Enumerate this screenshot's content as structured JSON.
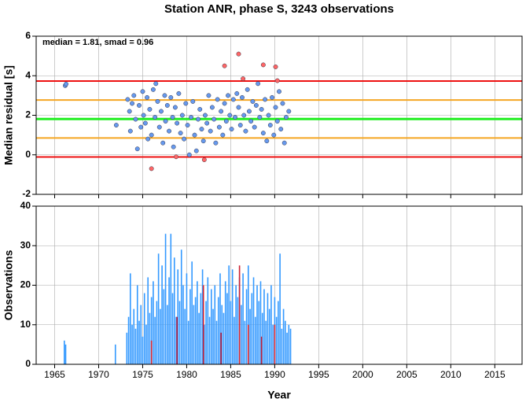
{
  "chart_data": [
    {
      "type": "scatter",
      "title": "Station ANR, phase S, 3243 observations",
      "ylabel": "Median residual [s]",
      "annotation": "median = 1.81, smad = 0.96",
      "xlim": [
        1962.9,
        2018.1
      ],
      "xticks": [
        1965,
        1970,
        1975,
        1980,
        1985,
        1990,
        1995,
        2000,
        2005,
        2010,
        2015
      ],
      "ylim": [
        -2,
        6
      ],
      "yticks": [
        -2,
        0,
        2,
        4,
        6
      ],
      "grid": true,
      "hlines": [
        {
          "value": 3.73,
          "color": "#ee1111"
        },
        {
          "value": 2.77,
          "color": "#f5a623"
        },
        {
          "value": 1.81,
          "color": "#22ee22"
        },
        {
          "value": 0.85,
          "color": "#f5a623"
        },
        {
          "value": -0.11,
          "color": "#ee1111"
        }
      ],
      "series": [
        {
          "color": "#6699ee",
          "x": [
            1966.2,
            1966.3,
            1972.0,
            1973.3,
            1973.5,
            1973.6,
            1973.8,
            1974.0,
            1974.2,
            1974.4,
            1974.6,
            1974.8,
            1975.0,
            1975.1,
            1975.3,
            1975.5,
            1975.6,
            1975.8,
            1976.0,
            1976.2,
            1976.4,
            1976.5,
            1976.7,
            1976.9,
            1977.1,
            1977.3,
            1977.5,
            1977.6,
            1977.8,
            1978.0,
            1978.2,
            1978.4,
            1978.5,
            1978.7,
            1978.9,
            1979.1,
            1979.3,
            1979.5,
            1979.7,
            1979.9,
            1980.1,
            1980.3,
            1980.5,
            1980.7,
            1980.9,
            1981.1,
            1981.3,
            1981.5,
            1981.7,
            1981.9,
            1982.1,
            1982.3,
            1982.5,
            1982.7,
            1982.9,
            1983.1,
            1983.3,
            1983.5,
            1983.7,
            1983.9,
            1984.1,
            1984.3,
            1984.5,
            1984.7,
            1984.9,
            1985.1,
            1985.3,
            1985.5,
            1985.7,
            1985.9,
            1986.1,
            1986.3,
            1986.5,
            1986.7,
            1986.9,
            1987.1,
            1987.3,
            1987.5,
            1987.7,
            1987.9,
            1988.1,
            1988.3,
            1988.5,
            1988.7,
            1988.9,
            1989.1,
            1989.3,
            1989.5,
            1989.7,
            1989.9,
            1990.1,
            1990.3,
            1990.5,
            1990.7,
            1990.9,
            1991.1,
            1991.3,
            1991.6
          ],
          "values": [
            3.5,
            3.58,
            1.5,
            2.8,
            2.2,
            1.2,
            2.6,
            3.0,
            1.8,
            0.3,
            2.5,
            1.4,
            3.2,
            2.0,
            1.6,
            2.9,
            0.8,
            2.3,
            1.0,
            3.3,
            1.9,
            3.6,
            2.7,
            1.4,
            2.2,
            0.6,
            3.0,
            1.7,
            2.5,
            1.2,
            2.9,
            1.9,
            0.4,
            2.4,
            1.6,
            3.1,
            1.1,
            2.0,
            0.8,
            2.6,
            1.5,
            0.0,
            1.9,
            2.7,
            1.0,
            0.2,
            1.8,
            2.3,
            1.3,
            0.7,
            2.0,
            1.6,
            3.0,
            1.2,
            2.4,
            1.8,
            0.6,
            2.8,
            1.4,
            2.2,
            1.0,
            2.6,
            1.7,
            3.0,
            2.0,
            1.3,
            2.8,
            1.9,
            3.1,
            2.4,
            1.5,
            2.9,
            2.0,
            1.2,
            3.3,
            2.2,
            1.7,
            2.7,
            1.4,
            2.5,
            3.6,
            1.9,
            2.3,
            1.1,
            2.8,
            0.7,
            2.0,
            1.5,
            2.9,
            1.0,
            2.4,
            1.7,
            3.2,
            1.3,
            2.6,
            0.6,
            1.9,
            2.2
          ]
        },
        {
          "color": "#ff6666",
          "x": [
            1976.0,
            1978.8,
            1982.0,
            1984.3,
            1985.9,
            1986.4,
            1988.7,
            1990.1,
            1990.3
          ],
          "values": [
            -0.7,
            -0.1,
            -0.25,
            4.5,
            5.1,
            3.85,
            4.55,
            4.45,
            3.75
          ]
        }
      ]
    },
    {
      "type": "bar",
      "ylabel": "Observations",
      "xlabel": "Year",
      "xlim": [
        1962.9,
        2018.1
      ],
      "xticks": [
        1965,
        1970,
        1975,
        1980,
        1985,
        1990,
        1995,
        2000,
        2005,
        2010,
        2015
      ],
      "ylim": [
        0,
        40
      ],
      "yticks": [
        0,
        10,
        20,
        30,
        40
      ],
      "grid": true,
      "series": [
        {
          "color": "#3399ff",
          "x": [
            1966.1,
            1966.25,
            1971.9,
            1973.2,
            1973.4,
            1973.6,
            1973.8,
            1974.0,
            1974.2,
            1974.4,
            1974.6,
            1974.8,
            1975.0,
            1975.2,
            1975.4,
            1975.6,
            1975.8,
            1976.0,
            1976.2,
            1976.4,
            1976.6,
            1976.8,
            1977.0,
            1977.2,
            1977.4,
            1977.6,
            1977.8,
            1978.0,
            1978.2,
            1978.4,
            1978.6,
            1978.8,
            1979.0,
            1979.2,
            1979.4,
            1979.6,
            1979.8,
            1980.0,
            1980.2,
            1980.4,
            1980.6,
            1980.8,
            1981.0,
            1981.2,
            1981.4,
            1981.6,
            1981.8,
            1982.0,
            1982.2,
            1982.4,
            1982.6,
            1982.8,
            1983.0,
            1983.2,
            1983.4,
            1983.6,
            1983.8,
            1984.0,
            1984.2,
            1984.4,
            1984.6,
            1984.8,
            1985.0,
            1985.2,
            1985.4,
            1985.6,
            1985.8,
            1986.0,
            1986.2,
            1986.4,
            1986.6,
            1986.8,
            1987.0,
            1987.2,
            1987.4,
            1987.6,
            1987.8,
            1988.0,
            1988.2,
            1988.4,
            1988.6,
            1988.8,
            1989.0,
            1989.2,
            1989.4,
            1989.6,
            1989.8,
            1990.0,
            1990.2,
            1990.4,
            1990.6,
            1990.8,
            1991.0,
            1991.2,
            1991.4,
            1991.6,
            1991.8
          ],
          "values": [
            6,
            5,
            5,
            8,
            12,
            23,
            10,
            14,
            9,
            20,
            11,
            15,
            7,
            18,
            10,
            22,
            13,
            17,
            21,
            12,
            16,
            28,
            14,
            25,
            19,
            33,
            15,
            22,
            33,
            18,
            27,
            12,
            24,
            16,
            29,
            20,
            14,
            23,
            11,
            19,
            26,
            15,
            17,
            21,
            13,
            18,
            24,
            10,
            16,
            22,
            12,
            19,
            14,
            20,
            11,
            17,
            23,
            15,
            13,
            21,
            18,
            25,
            16,
            24,
            12,
            20,
            17,
            22,
            15,
            23,
            11,
            19,
            25,
            14,
            18,
            22,
            12,
            20,
            16,
            21,
            13,
            19,
            11,
            18,
            14,
            20,
            10,
            17,
            12,
            16,
            28,
            9,
            14,
            11,
            8,
            10,
            9
          ]
        },
        {
          "color": "#cc2233",
          "x": [
            1976.0,
            1978.9,
            1981.9,
            1983.9,
            1986.0,
            1987.0,
            1988.5,
            1990.0
          ],
          "values": [
            6,
            12,
            20,
            8,
            25,
            10,
            7,
            10
          ]
        }
      ]
    }
  ]
}
